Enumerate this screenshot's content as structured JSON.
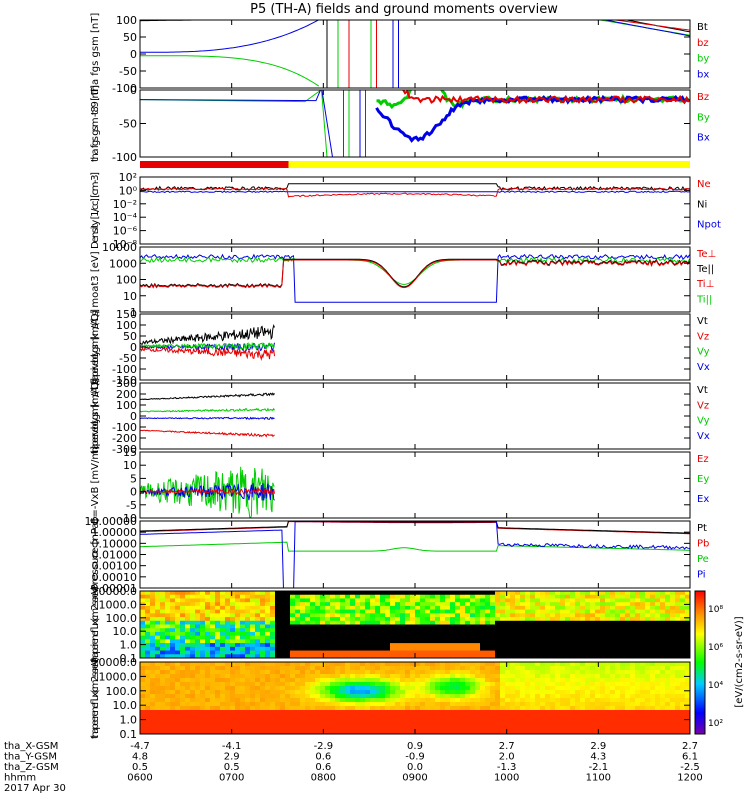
{
  "title": "P5 (TH-A) fields and ground moments overview",
  "colors": {
    "black": "#000000",
    "red": "#e60000",
    "green": "#00cc00",
    "blue": "#0000e6",
    "yellow": "#ffff00"
  },
  "time_ticks": [
    "0600",
    "0700",
    "0800",
    "0900",
    "1000",
    "1100",
    "1200"
  ],
  "orbit_rows": [
    {
      "label": "tha_X-GSM",
      "values": [
        "-4.7",
        "-4.1",
        "-2.9",
        "0.9",
        "2.7",
        "2.9",
        "2.7"
      ]
    },
    {
      "label": "tha_Y-GSM",
      "values": [
        "4.8",
        "2.9",
        "0.6",
        "-0.9",
        "2.0",
        "4.3",
        "6.1"
      ]
    },
    {
      "label": "tha_Z-GSM",
      "values": [
        "0.5",
        "0.5",
        "0.6",
        "0.0",
        "-1.3",
        "-2.1",
        "-2.5"
      ]
    },
    {
      "label": "hhmm",
      "values": [
        "0600",
        "0700",
        "0800",
        "0900",
        "1000",
        "1100",
        "1200"
      ]
    }
  ],
  "date": "2017 Apr 30",
  "colorbar": {
    "label": "[eV/(cm2-s-sr-eV)]",
    "ticks": [
      "10⁸",
      "10⁶",
      "10⁴",
      "10²"
    ]
  },
  "chart_data": [
    {
      "type": "line",
      "ylabel": "tha fgs gsm [nT]",
      "ylim": [
        -100,
        100
      ],
      "yticks": [
        "100",
        "50",
        "0",
        "-50",
        "-100"
      ],
      "series": [
        {
          "name": "Bt",
          "color": "#000000"
        },
        {
          "name": "bz",
          "color": "#e60000"
        },
        {
          "name": "by",
          "color": "#00cc00"
        },
        {
          "name": "bx",
          "color": "#0000e6"
        }
      ]
    },
    {
      "type": "line",
      "ylabel": "tha fgs gsm -t89 [nT]",
      "ylim": [
        -120,
        20
      ],
      "yticks": [
        "0",
        "-50",
        "-100"
      ],
      "series": [
        {
          "name": "Bz",
          "color": "#e60000"
        },
        {
          "name": "By",
          "color": "#00cc00"
        },
        {
          "name": "Bx",
          "color": "#0000e6"
        }
      ]
    },
    {
      "type": "line",
      "ylabel": "Density [1/cc] [cm-3]",
      "yticks": [
        "10²",
        "10⁰",
        "10⁻²",
        "10⁻⁴",
        "10⁻⁶",
        "10⁻⁸"
      ],
      "series": [
        {
          "name": "Ne",
          "color": "#e60000"
        },
        {
          "name": "Ni",
          "color": "#000000"
        },
        {
          "name": "Npot",
          "color": "#0000e6"
        }
      ]
    },
    {
      "type": "line",
      "ylabel": "moat3 [eV]",
      "yticks": [
        "10000",
        "1000",
        "100",
        "10",
        "1"
      ],
      "series": [
        {
          "name": "Te⊥",
          "color": "#e60000"
        },
        {
          "name": "Te||",
          "color": "#000000"
        },
        {
          "name": "Ti⊥",
          "color": "#e60000"
        },
        {
          "name": "Ti||",
          "color": "#00cc00"
        }
      ]
    },
    {
      "type": "line",
      "ylabel": "tha peir velocity gsm [km/s (All Qs)]",
      "ylim": [
        -150,
        150
      ],
      "yticks": [
        "150",
        "100",
        "50",
        "0",
        "-50",
        "-100",
        "-150"
      ],
      "series": [
        {
          "name": "Vt",
          "color": "#000000"
        },
        {
          "name": "Vz",
          "color": "#e60000"
        },
        {
          "name": "Vy",
          "color": "#00cc00"
        },
        {
          "name": "Vx",
          "color": "#0000e6"
        }
      ]
    },
    {
      "type": "line",
      "ylabel": "tha peer velocity gsm [km/s (All Qs)]",
      "ylim": [
        -300,
        300
      ],
      "yticks": [
        "300",
        "200",
        "100",
        "0",
        "-100",
        "-200",
        "-300"
      ],
      "series": [
        {
          "name": "Vt",
          "color": "#000000"
        },
        {
          "name": "Vz",
          "color": "#e60000"
        },
        {
          "name": "Vy",
          "color": "#00cc00"
        },
        {
          "name": "Vx",
          "color": "#0000e6"
        }
      ]
    },
    {
      "type": "line",
      "ylabel": "E=-VxB [mV/m]",
      "ylim": [
        -10,
        15
      ],
      "yticks": [
        "15",
        "10",
        "5",
        "0",
        "-5",
        "-10"
      ],
      "series": [
        {
          "name": "Ez",
          "color": "#e60000"
        },
        {
          "name": "Ey",
          "color": "#00cc00"
        },
        {
          "name": "Ex",
          "color": "#0000e6"
        }
      ]
    },
    {
      "type": "line",
      "ylabel": "Pressure [nPa]",
      "yticks": [
        "10.00000",
        "1.00000",
        "0.10000",
        "0.01000",
        "0.00100",
        "0.00010",
        "0.00001"
      ],
      "series": [
        {
          "name": "Pt",
          "color": "#000000"
        },
        {
          "name": "Pb",
          "color": "#e60000"
        },
        {
          "name": "Pe",
          "color": "#00cc00"
        },
        {
          "name": "Pi",
          "color": "#0000e6"
        }
      ]
    },
    {
      "type": "heatmap",
      "ylabel": "tha peir en eflux (cm2-s-sr-eV)",
      "yticks": [
        "10000.0",
        "1000.0",
        "100.0",
        "10.0",
        "1.0",
        "0.1"
      ]
    },
    {
      "type": "heatmap",
      "ylabel": "tha peer en eflux (cm2-s-sr-eV)",
      "yticks": [
        "10000.0",
        "1000.0",
        "100.0",
        "10.0",
        "1.0",
        "0.1"
      ]
    }
  ]
}
